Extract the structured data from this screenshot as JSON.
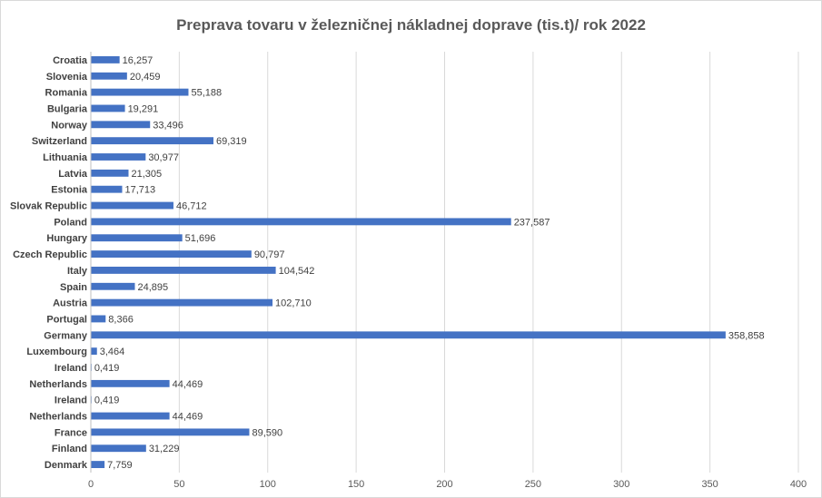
{
  "chart_data": {
    "type": "bar",
    "orientation": "horizontal",
    "title": "Preprava tovaru v železničnej nákladnej doprave (tis.t)/ rok 2022",
    "xlabel": "",
    "ylabel": "",
    "xlim": [
      0,
      400
    ],
    "x_ticks": [
      "0",
      "50",
      "100",
      "150",
      "200",
      "250",
      "300",
      "350",
      "400"
    ],
    "grid": "vertical",
    "legend": "none",
    "bar_color": "#4472c4",
    "categories": [
      "Croatia",
      "Slovenia",
      "Romania",
      "Bulgaria",
      "Norway",
      "Switzerland",
      "Lithuania",
      "Latvia",
      "Estonia",
      "Slovak Republic",
      "Poland",
      "Hungary",
      "Czech Republic",
      "Italy",
      "Spain",
      "Austria",
      "Portugal",
      "Germany",
      "Luxembourg",
      "Ireland",
      "Netherlands",
      "Ireland",
      "Netherlands",
      "France",
      "Finland",
      "Denmark"
    ],
    "values": [
      16.257,
      20.459,
      55.188,
      19.291,
      33.496,
      69.319,
      30.977,
      21.305,
      17.713,
      46.712,
      237.587,
      51.696,
      90.797,
      104.542,
      24.895,
      102.71,
      8.366,
      358.858,
      3.464,
      0.419,
      44.469,
      0.419,
      44.469,
      89.59,
      31.229,
      7.759
    ],
    "data_labels": [
      "16,257",
      "20,459",
      "55,188",
      "19,291",
      "33,496",
      "69,319",
      "30,977",
      "21,305",
      "17,713",
      "46,712",
      "237,587",
      "51,696",
      "90,797",
      "104,542",
      "24,895",
      "102,710",
      "8,366",
      "358,858",
      "3,464",
      "0,419",
      "44,469",
      "0,419",
      "44,469",
      "89,590",
      "31,229",
      "7,759"
    ]
  }
}
